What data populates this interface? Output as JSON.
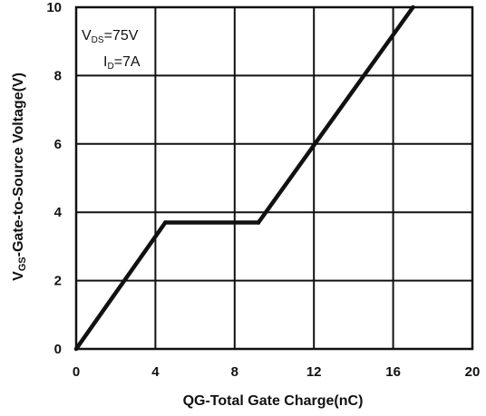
{
  "chart_data": {
    "type": "line",
    "xlabel": "QG-Total Gate Charge(nC)",
    "ylabel": "VGS-Gate-to-Source Voltage(V)",
    "xlim": [
      0,
      20
    ],
    "ylim": [
      0,
      10
    ],
    "x_ticks": [
      0,
      4,
      8,
      12,
      16,
      20
    ],
    "y_ticks": [
      0,
      2,
      4,
      6,
      8,
      10
    ],
    "x_tick_labels": [
      "0",
      "4",
      "8",
      "12",
      "16",
      "20"
    ],
    "y_tick_labels": [
      "0",
      "2",
      "4",
      "6",
      "8",
      "10"
    ],
    "grid": true,
    "series": [
      {
        "x": [
          0,
          4.5,
          9.2,
          17.0
        ],
        "y": [
          0,
          3.7,
          3.7,
          10.0
        ]
      }
    ],
    "annotations": {
      "vds": "VDS=75V",
      "id": "ID=7A"
    }
  }
}
